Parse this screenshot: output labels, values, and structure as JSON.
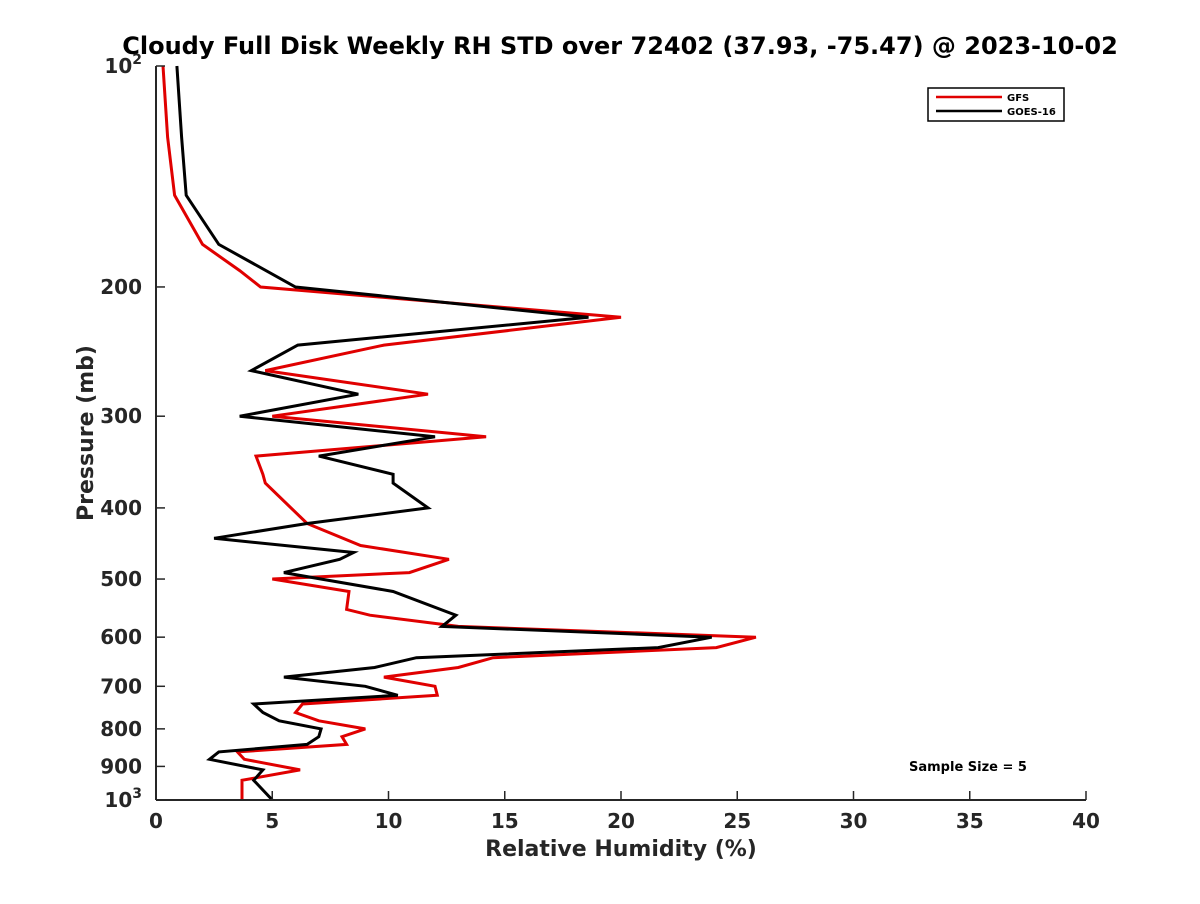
{
  "chart_data": {
    "type": "line",
    "title": "Cloudy Full Disk Weekly RH STD over 72402 (37.93, -75.47) @ 2023-10-02",
    "xlabel": "Relative Humidity (%)",
    "ylabel": "Pressure (mb)",
    "xlim": [
      0,
      40
    ],
    "ylim": [
      100,
      1000
    ],
    "y_scale": "log",
    "y_reversed": true,
    "x_ticks": [
      "0",
      "5",
      "10",
      "15",
      "20",
      "25",
      "30",
      "35",
      "40"
    ],
    "y_ticks": [
      {
        "value": 100,
        "base": "10",
        "exp": "2"
      },
      {
        "value": 200,
        "label": "200"
      },
      {
        "value": 300,
        "label": "300"
      },
      {
        "value": 400,
        "label": "400"
      },
      {
        "value": 500,
        "label": "500"
      },
      {
        "value": 600,
        "label": "600"
      },
      {
        "value": 700,
        "label": "700"
      },
      {
        "value": 800,
        "label": "800"
      },
      {
        "value": 900,
        "label": "900"
      },
      {
        "value": 1000,
        "base": "10",
        "exp": "3"
      }
    ],
    "grid": false,
    "legend_position": "top-right",
    "annotation": "Sample Size = 5",
    "series": [
      {
        "name": "GFS",
        "color": "#e00000",
        "points": [
          [
            0.3,
            100
          ],
          [
            0.5,
            125
          ],
          [
            0.8,
            150
          ],
          [
            2.0,
            175
          ],
          [
            3.6,
            190
          ],
          [
            4.5,
            200
          ],
          [
            20.0,
            220
          ],
          [
            9.8,
            240
          ],
          [
            4.7,
            260
          ],
          [
            11.7,
            280
          ],
          [
            5.0,
            300
          ],
          [
            14.2,
            320
          ],
          [
            4.3,
            340
          ],
          [
            4.6,
            360
          ],
          [
            4.7,
            370
          ],
          [
            6.5,
            420
          ],
          [
            8.8,
            450
          ],
          [
            12.6,
            470
          ],
          [
            10.9,
            490
          ],
          [
            5.0,
            500
          ],
          [
            8.3,
            520
          ],
          [
            8.2,
            550
          ],
          [
            9.2,
            560
          ],
          [
            13.0,
            580
          ],
          [
            25.8,
            600
          ],
          [
            24.1,
            620
          ],
          [
            14.5,
            640
          ],
          [
            13.0,
            660
          ],
          [
            9.8,
            680
          ],
          [
            12.0,
            700
          ],
          [
            12.1,
            720
          ],
          [
            6.3,
            740
          ],
          [
            6.0,
            760
          ],
          [
            7.0,
            780
          ],
          [
            9.0,
            800
          ],
          [
            8.0,
            820
          ],
          [
            8.2,
            840
          ],
          [
            3.5,
            860
          ],
          [
            3.8,
            880
          ],
          [
            6.2,
            910
          ],
          [
            3.7,
            940
          ],
          [
            3.7,
            1000
          ]
        ]
      },
      {
        "name": "GOES-16",
        "color": "#000000",
        "points": [
          [
            0.9,
            100
          ],
          [
            1.1,
            125
          ],
          [
            1.3,
            150
          ],
          [
            2.7,
            175
          ],
          [
            6.0,
            200
          ],
          [
            18.6,
            220
          ],
          [
            6.1,
            240
          ],
          [
            4.1,
            260
          ],
          [
            8.7,
            280
          ],
          [
            3.6,
            300
          ],
          [
            12.0,
            320
          ],
          [
            7.0,
            340
          ],
          [
            10.2,
            360
          ],
          [
            10.2,
            370
          ],
          [
            11.7,
            400
          ],
          [
            6.5,
            420
          ],
          [
            2.5,
            440
          ],
          [
            8.5,
            460
          ],
          [
            7.9,
            470
          ],
          [
            5.5,
            490
          ],
          [
            10.2,
            520
          ],
          [
            12.9,
            560
          ],
          [
            12.3,
            580
          ],
          [
            23.9,
            600
          ],
          [
            21.6,
            620
          ],
          [
            11.2,
            640
          ],
          [
            9.4,
            660
          ],
          [
            5.5,
            680
          ],
          [
            9.0,
            700
          ],
          [
            10.4,
            720
          ],
          [
            4.2,
            740
          ],
          [
            4.6,
            760
          ],
          [
            5.3,
            780
          ],
          [
            7.1,
            800
          ],
          [
            7.0,
            820
          ],
          [
            6.5,
            840
          ],
          [
            2.7,
            860
          ],
          [
            2.3,
            880
          ],
          [
            4.6,
            910
          ],
          [
            4.2,
            940
          ],
          [
            5.0,
            1000
          ]
        ]
      }
    ]
  }
}
